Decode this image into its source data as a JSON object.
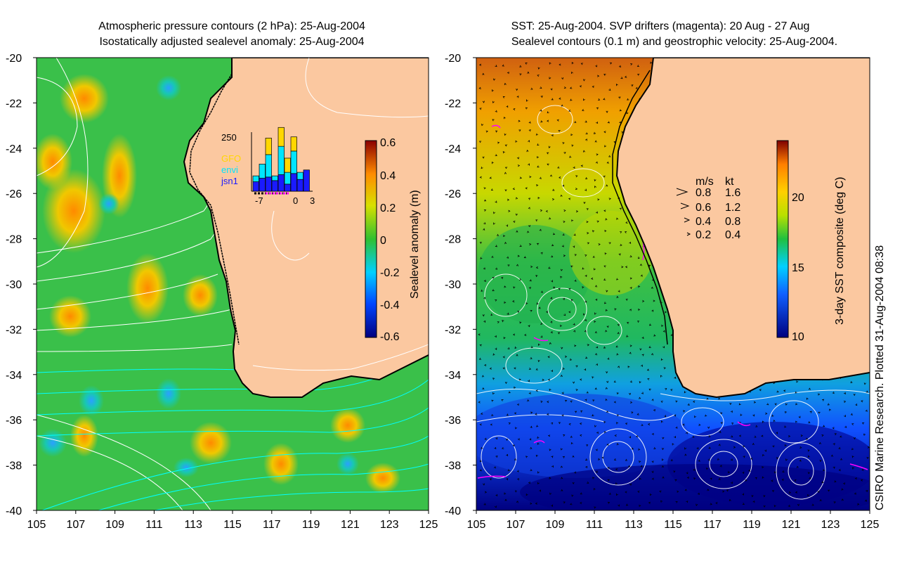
{
  "left_panel": {
    "title_line1": "Atmospheric pressure contours (2 hPa): 25-Aug-2004",
    "title_line2": "Isostatically adjusted sealevel anomaly: 25-Aug-2004",
    "colorbar": {
      "label": "Sealevel anomaly (m)",
      "ticks": [
        "0.6",
        "0.4",
        "0.2",
        "0",
        "-0.2",
        "-0.4",
        "-0.6"
      ],
      "range": [
        -0.6,
        0.6
      ]
    },
    "inset": {
      "ymax_label": "250",
      "legend": [
        "GFO",
        "envi",
        "jsn1"
      ],
      "legend_colors": [
        "#ffd700",
        "#00e5ff",
        "#1a1aff"
      ],
      "x_ticks": [
        "-7",
        "0",
        "3"
      ],
      "bars": [
        {
          "x": -7,
          "jsn1": 40,
          "envi": 25,
          "gfo": 0
        },
        {
          "x": -6,
          "jsn1": 55,
          "envi": 60,
          "gfo": 0
        },
        {
          "x": -5,
          "jsn1": 60,
          "envi": 95,
          "gfo": 70
        },
        {
          "x": -4,
          "jsn1": 45,
          "envi": 20,
          "gfo": 0
        },
        {
          "x": -3,
          "jsn1": 70,
          "envi": 120,
          "gfo": 80
        },
        {
          "x": -2,
          "jsn1": 30,
          "envi": 50,
          "gfo": 60
        },
        {
          "x": -1,
          "jsn1": 75,
          "envi": 95,
          "gfo": 60
        },
        {
          "x": 0,
          "jsn1": 50,
          "envi": 30,
          "gfo": 0
        },
        {
          "x": 1,
          "jsn1": 90,
          "envi": 0,
          "gfo": 0
        }
      ]
    }
  },
  "right_panel": {
    "title_line1": "SST: 25-Aug-2004. SVP drifters (magenta): 20 Aug - 27 Aug",
    "title_line2": "Sealevel contours (0.1 m) and geostrophic velocity: 25-Aug-2004.",
    "colorbar": {
      "label": "3-day SST composite (deg C)",
      "ticks": [
        "20",
        "15",
        "10"
      ],
      "range": [
        10,
        24
      ]
    },
    "velocity_legend": {
      "header_ms": "m/s",
      "header_kt": "kt",
      "rows": [
        {
          "ms": "0.8",
          "kt": "1.6"
        },
        {
          "ms": "0.6",
          "kt": "1.2"
        },
        {
          "ms": "0.4",
          "kt": "0.8"
        },
        {
          "ms": "0.2",
          "kt": "0.4"
        }
      ]
    }
  },
  "axes": {
    "y_ticks": [
      "-20",
      "-22",
      "-24",
      "-26",
      "-28",
      "-30",
      "-32",
      "-34",
      "-36",
      "-38",
      "-40"
    ],
    "x_ticks": [
      "105",
      "107",
      "109",
      "111",
      "113",
      "115",
      "117",
      "119",
      "121",
      "123",
      "125"
    ],
    "lon_range": [
      105,
      125
    ],
    "lat_range": [
      -40,
      -20
    ]
  },
  "credit": "CSIRO Marine Research. Plotted 31-Aug-2004 08:38",
  "colors": {
    "land": "#fbc8a0",
    "ocean_left": "#39c24a",
    "coast": "#000000",
    "contour": "#ffffff",
    "drifter": "#ff00ff"
  }
}
